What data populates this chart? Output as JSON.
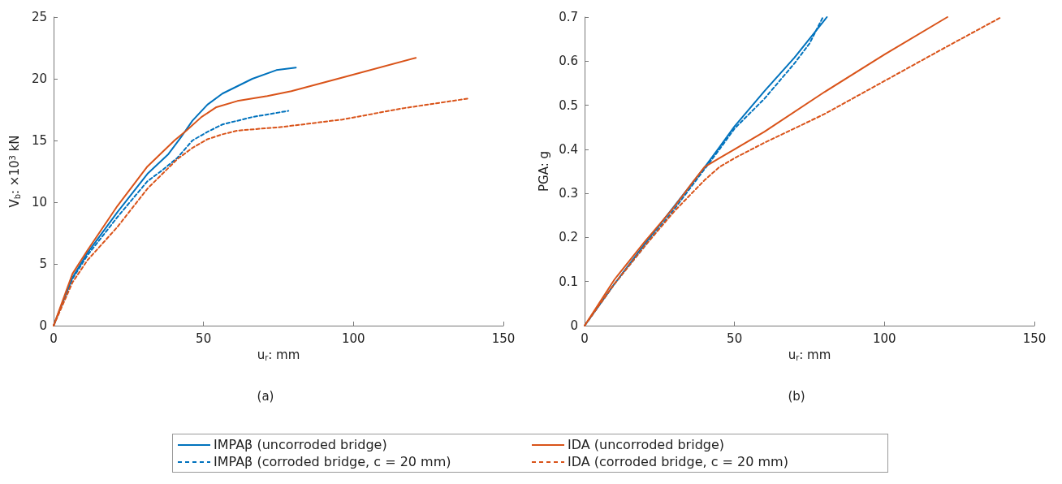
{
  "chart_data": [
    {
      "type": "line",
      "xlabel": "u$_{r}$: mm",
      "ylabel": "V$_{b}$: ×10$^{3}$ kN",
      "annotations": [
        "(a)"
      ],
      "xlim": [
        0,
        150
      ],
      "xticks": [
        0,
        50,
        100,
        150
      ],
      "ylim": [
        0,
        25
      ],
      "yticks": [
        0,
        5,
        10,
        15,
        20,
        25
      ],
      "grid": false,
      "marker": "none",
      "legend": "bottom",
      "series": [
        {
          "name": "IMPAβ (uncorroded bridge)",
          "color": "#0072bd",
          "line_style": "solid",
          "x": [
            0,
            6.3,
            11.3,
            21.3,
            31.3,
            38.3,
            42.3,
            46.3,
            51.3,
            56.3,
            66.3,
            74.3,
            80.8
          ],
          "values": [
            0,
            3.9,
            5.9,
            9.2,
            12.3,
            13.9,
            15.2,
            16.6,
            17.9,
            18.8,
            20.0,
            20.7,
            20.9
          ]
        },
        {
          "name": "IMPAβ (corroded bridge, c = 20 mm)",
          "color": "#0072bd",
          "line_style": "dashed",
          "x": [
            0,
            6.3,
            11.3,
            21.3,
            31.3,
            36.3,
            41.3,
            46.3,
            51.3,
            56.3,
            66.3,
            78.3
          ],
          "values": [
            0,
            3.8,
            5.7,
            8.8,
            11.7,
            12.6,
            13.6,
            15.0,
            15.7,
            16.3,
            16.9,
            17.4
          ]
        },
        {
          "name": "IDA (uncorroded bridge)",
          "color": "#d95319",
          "line_style": "solid",
          "x": [
            0,
            6.3,
            11.3,
            21.3,
            31.3,
            40.3,
            44.3,
            49.3,
            54.3,
            61.3,
            71.3,
            79.3,
            96.3,
            120.8
          ],
          "values": [
            0,
            4.2,
            6.1,
            9.7,
            12.9,
            15.0,
            15.8,
            16.9,
            17.7,
            18.2,
            18.6,
            19.0,
            20.1,
            21.7
          ]
        },
        {
          "name": "IDA (corroded bridge, c = 20 mm)",
          "color": "#d95319",
          "line_style": "dashed",
          "x": [
            0,
            6.3,
            11.3,
            21.3,
            31.3,
            41.3,
            46.3,
            51.3,
            56.3,
            61.3,
            76.3,
            96.3,
            116.3,
            138.3
          ],
          "values": [
            0,
            3.5,
            5.3,
            8.0,
            11.1,
            13.5,
            14.4,
            15.1,
            15.5,
            15.8,
            16.1,
            16.7,
            17.6,
            18.4
          ]
        }
      ]
    },
    {
      "type": "line",
      "xlabel": "u$_{r}$: mm",
      "ylabel": "PGA: g",
      "annotations": [
        "(b)"
      ],
      "xlim": [
        0,
        150
      ],
      "xticks": [
        0,
        50,
        100,
        150
      ],
      "ylim": [
        0,
        0.7
      ],
      "yticks": [
        0,
        0.1,
        0.2,
        0.3,
        0.4,
        0.5,
        0.6,
        0.7
      ],
      "grid": false,
      "marker": "none",
      "legend": "bottom",
      "series": [
        {
          "name": "IMPAβ (uncorroded bridge)",
          "color": "#0072bd",
          "line_style": "solid",
          "x": [
            0,
            10,
            20,
            30,
            40,
            45,
            50,
            60,
            70,
            80.8
          ],
          "values": [
            0,
            0.095,
            0.185,
            0.272,
            0.359,
            0.405,
            0.452,
            0.532,
            0.608,
            0.7
          ]
        },
        {
          "name": "IMPAβ (corroded bridge, c = 20 mm)",
          "color": "#0072bd",
          "line_style": "dashed",
          "x": [
            0,
            10,
            20,
            30,
            40,
            45,
            50,
            60,
            70,
            75,
            79.5
          ],
          "values": [
            0,
            0.095,
            0.18,
            0.265,
            0.355,
            0.4,
            0.447,
            0.515,
            0.595,
            0.64,
            0.7
          ]
        },
        {
          "name": "IDA (uncorroded bridge)",
          "color": "#d95319",
          "line_style": "solid",
          "x": [
            0,
            10,
            20,
            30,
            36,
            40,
            45,
            50,
            60,
            80,
            100,
            121
          ],
          "values": [
            0,
            0.105,
            0.19,
            0.27,
            0.325,
            0.36,
            0.38,
            0.4,
            0.44,
            0.53,
            0.615,
            0.7
          ]
        },
        {
          "name": "IDA (corroded bridge, c = 20 mm)",
          "color": "#d95319",
          "line_style": "dashed",
          "x": [
            0,
            10,
            20,
            30,
            40,
            45,
            50,
            60,
            80,
            100,
            120,
            139
          ],
          "values": [
            0,
            0.095,
            0.18,
            0.26,
            0.33,
            0.36,
            0.38,
            0.415,
            0.48,
            0.555,
            0.63,
            0.7
          ]
        }
      ]
    }
  ]
}
